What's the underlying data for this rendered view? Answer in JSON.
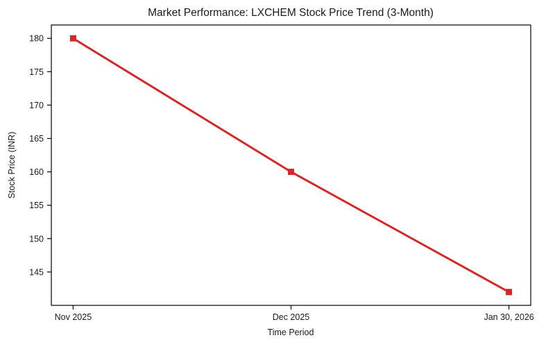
{
  "chart_data": {
    "type": "line",
    "title": "Market Performance: LXCHEM Stock Price Trend (3-Month)",
    "xlabel": "Time Period",
    "ylabel": "Stock Price (INR)",
    "categories": [
      "Nov 2025",
      "Dec 2025",
      "Jan 30, 2026"
    ],
    "series": [
      {
        "name": "LXCHEM stock price",
        "values": [
          180,
          160,
          142
        ],
        "color": "#d62728",
        "marker": "square",
        "line_width": 3,
        "marker_size": 9
      }
    ],
    "ylim": [
      140,
      182
    ],
    "yticks": [
      145,
      150,
      155,
      160,
      165,
      170,
      175,
      180
    ],
    "grid": false,
    "legend_position": "none",
    "background_color": "#ffffff",
    "axis_color": "#000000",
    "text_color": "#1a1a1a"
  }
}
